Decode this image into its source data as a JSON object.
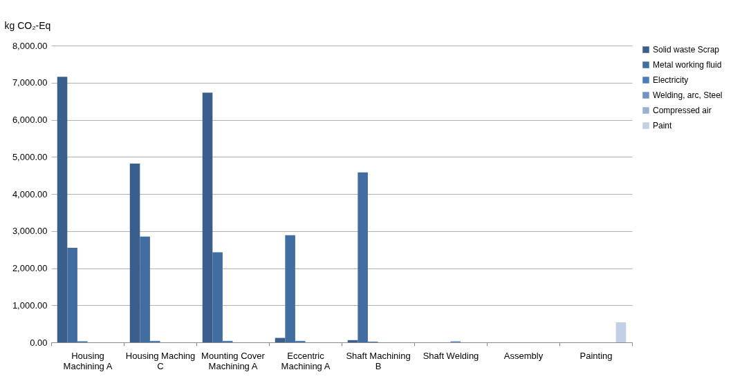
{
  "chart_data": {
    "type": "bar",
    "ylabel": "kg CO₂-Eq",
    "categories": [
      "Housing Machining A",
      "Housing Maching C",
      "Mounting Cover Machining A",
      "Eccentric Machining A",
      "Shaft Machining B",
      "Shaft Welding",
      "Assembly",
      "Painting"
    ],
    "series": [
      {
        "name": "Solid waste Scrap",
        "color": "#3a5f8d",
        "values": [
          7160,
          4820,
          6730,
          120,
          60,
          0,
          0,
          0
        ]
      },
      {
        "name": "Metal working fluid",
        "color": "#426da0",
        "values": [
          2550,
          2850,
          2430,
          2890,
          4580,
          0,
          0,
          0
        ]
      },
      {
        "name": "Electricity",
        "color": "#4a7ebb",
        "values": [
          30,
          40,
          40,
          40,
          20,
          0,
          0,
          0
        ]
      },
      {
        "name": "Welding, arc, Steel",
        "color": "#7094c8",
        "values": [
          0,
          0,
          0,
          0,
          0,
          30,
          0,
          0
        ]
      },
      {
        "name": "Compressed air",
        "color": "#9bb1d4",
        "values": [
          0,
          0,
          0,
          0,
          0,
          0,
          0,
          0
        ]
      },
      {
        "name": "Paint",
        "color": "#c3cfe5",
        "values": [
          0,
          0,
          0,
          0,
          0,
          0,
          0,
          540
        ]
      }
    ],
    "ylim": [
      0,
      8000
    ],
    "yticks": [
      {
        "value": 0,
        "label": "0.00"
      },
      {
        "value": 1000,
        "label": "1,000.00"
      },
      {
        "value": 2000,
        "label": "2,000.00"
      },
      {
        "value": 3000,
        "label": "3,000.00"
      },
      {
        "value": 4000,
        "label": "4,000.00"
      },
      {
        "value": 5000,
        "label": "5,000.00"
      },
      {
        "value": 6000,
        "label": "6,000.00"
      },
      {
        "value": 7000,
        "label": "7,000.00"
      },
      {
        "value": 8000,
        "label": "8,000.00"
      }
    ],
    "grid": "y",
    "legend": "right"
  }
}
